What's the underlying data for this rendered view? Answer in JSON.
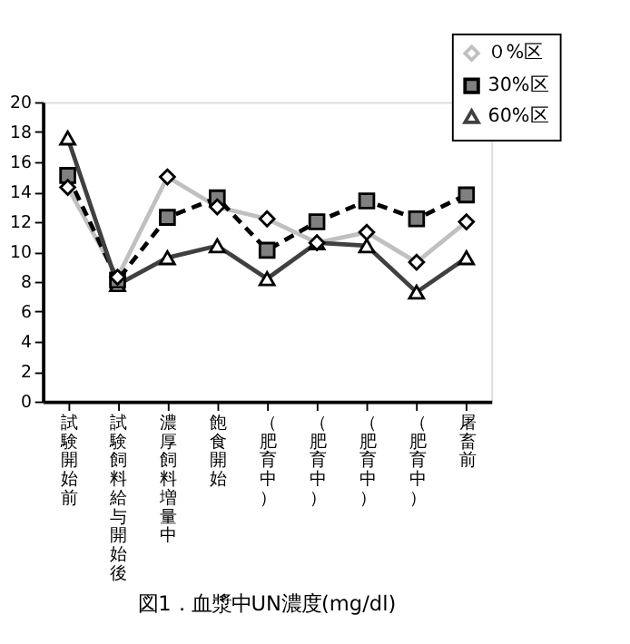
{
  "chart_data": {
    "type": "line",
    "title": "図1．血漿中UN濃度(mg/dl)",
    "categories": [
      "試験開始前",
      "試験飼料給与開始後",
      "濃厚飼料増量中",
      "飽食開始",
      "（肥育中）",
      "（肥育中）",
      "（肥育中）",
      "（肥育中）",
      "屠畜前"
    ],
    "series": [
      {
        "name": "０%区",
        "color": "#c0c0c0",
        "marker": "diamond",
        "line_style": "solid",
        "values": [
          14.3,
          8.3,
          15.0,
          13.0,
          12.2,
          10.6,
          11.3,
          9.3,
          12.0
        ]
      },
      {
        "name": "30%区",
        "color": "#000000",
        "marker": "square",
        "line_style": "dashed",
        "values": [
          15.1,
          8.1,
          12.3,
          13.6,
          10.1,
          12.0,
          13.4,
          12.2,
          13.8
        ]
      },
      {
        "name": "60%区",
        "color": "#404040",
        "marker": "triangle",
        "line_style": "solid",
        "values": [
          17.6,
          7.8,
          9.6,
          10.4,
          8.2,
          10.6,
          10.4,
          7.3,
          9.6
        ]
      }
    ],
    "ylim": [
      0,
      20
    ],
    "yticks": [
      0,
      2,
      4,
      6,
      8,
      10,
      12,
      14,
      16,
      18,
      20
    ],
    "grid": false,
    "legend": "top right"
  }
}
